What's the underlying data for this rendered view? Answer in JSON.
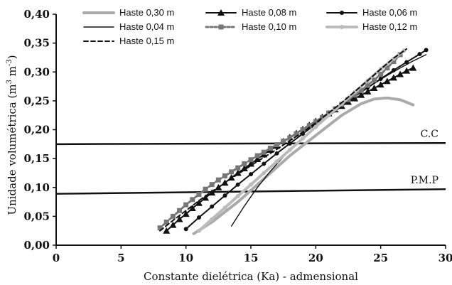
{
  "chart_data": {
    "type": "line",
    "title": "",
    "xlabel": "Constante dielétrica (Ka) - admensional",
    "ylabel_main": "Unidade volumétrica (m",
    "ylabel_sup1": "3",
    "ylabel_mid": " m",
    "ylabel_sup2": "-3",
    "ylabel_end": ")",
    "xlim": [
      0,
      30
    ],
    "ylim": [
      0,
      0.4
    ],
    "x_ticks": [
      {
        "value": 0,
        "label": "0"
      },
      {
        "value": 5,
        "label": "5"
      },
      {
        "value": 10,
        "label": "10"
      },
      {
        "value": 15,
        "label": "15"
      },
      {
        "value": 20,
        "label": "20"
      },
      {
        "value": 25,
        "label": "25"
      },
      {
        "value": 30,
        "label": "30"
      }
    ],
    "y_ticks": [
      {
        "value": 0,
        "label": "0,00"
      },
      {
        "value": 0.05,
        "label": "0,05"
      },
      {
        "value": 0.1,
        "label": "0,10"
      },
      {
        "value": 0.15,
        "label": "0,15"
      },
      {
        "value": 0.2,
        "label": "0,20"
      },
      {
        "value": 0.25,
        "label": "0,25"
      },
      {
        "value": 0.3,
        "label": "0,30"
      },
      {
        "value": 0.35,
        "label": "0,35"
      },
      {
        "value": 0.4,
        "label": "0,40"
      }
    ],
    "grid": false,
    "legend_position": "top",
    "reference_lines": [
      {
        "label": "C.C",
        "y_start": 0.175,
        "y_end": 0.177
      },
      {
        "label": "P.M.P",
        "y_start": 0.089,
        "y_end": 0.097
      }
    ],
    "series": [
      {
        "name": "Haste 0,30 m",
        "color": "#aaaaaa",
        "style": "thick",
        "marker": "none",
        "x": [
          10.6,
          12,
          14,
          16,
          18,
          20,
          22,
          23.5,
          24.5,
          25.5,
          26.5,
          27.5
        ],
        "y": [
          0.02,
          0.04,
          0.075,
          0.115,
          0.155,
          0.19,
          0.225,
          0.245,
          0.253,
          0.255,
          0.252,
          0.243
        ]
      },
      {
        "name": "Haste 0,08 m",
        "color": "#111111",
        "style": "solid",
        "marker": "triangle",
        "x": [
          8.5,
          9,
          9.5,
          10,
          10.5,
          11,
          11.5,
          12,
          12.5,
          13,
          13.5,
          14,
          14.5,
          15,
          15.5,
          16,
          16.5,
          17,
          17.5,
          18,
          18.5,
          19,
          19.5,
          20,
          20.5,
          21,
          21.5,
          22,
          22.5,
          23,
          23.5,
          24,
          24.5,
          25,
          25.5,
          26,
          26.5,
          27,
          27.5
        ],
        "y": [
          0.025,
          0.035,
          0.045,
          0.054,
          0.064,
          0.073,
          0.082,
          0.091,
          0.1,
          0.108,
          0.117,
          0.125,
          0.133,
          0.141,
          0.149,
          0.157,
          0.165,
          0.172,
          0.18,
          0.187,
          0.194,
          0.201,
          0.208,
          0.215,
          0.222,
          0.228,
          0.235,
          0.241,
          0.248,
          0.254,
          0.26,
          0.266,
          0.272,
          0.278,
          0.284,
          0.29,
          0.296,
          0.302,
          0.307
        ]
      },
      {
        "name": "Haste 0,06 m",
        "color": "#111111",
        "style": "solid",
        "marker": "circle",
        "x": [
          10,
          11,
          12,
          13,
          14,
          15,
          16,
          17,
          18,
          19,
          20,
          21,
          22,
          23,
          24,
          25,
          26,
          27,
          28,
          28.5
        ],
        "y": [
          0.028,
          0.048,
          0.067,
          0.086,
          0.105,
          0.123,
          0.141,
          0.159,
          0.176,
          0.193,
          0.21,
          0.226,
          0.242,
          0.258,
          0.273,
          0.288,
          0.303,
          0.317,
          0.331,
          0.338
        ]
      },
      {
        "name": "Haste 0,04 m",
        "color": "#111111",
        "style": "thin",
        "marker": "none",
        "x": [
          13.5,
          14.5,
          15.5,
          16.5,
          17.5,
          18.5,
          19.5,
          20.5,
          21.5,
          22.5,
          23.5,
          24.5,
          25.5,
          26.5,
          27.5,
          28.5
        ],
        "y": [
          0.033,
          0.068,
          0.1,
          0.128,
          0.153,
          0.175,
          0.195,
          0.214,
          0.232,
          0.249,
          0.265,
          0.28,
          0.294,
          0.307,
          0.319,
          0.33
        ]
      },
      {
        "name": "Haste 0,10 m",
        "color": "#777777",
        "style": "dotted",
        "marker": "square",
        "x": [
          8,
          8.5,
          9,
          9.5,
          10,
          10.5,
          11,
          11.5,
          12,
          12.5,
          13,
          13.5,
          14,
          14.5,
          15,
          15.5,
          16,
          16.5,
          17,
          17.5,
          18,
          18.5,
          19,
          19.5,
          20,
          20.5,
          21,
          21.5,
          22,
          22.5,
          23,
          23.5,
          24,
          24.5,
          25,
          25.5,
          26,
          26.5
        ],
        "y": [
          0.03,
          0.04,
          0.05,
          0.06,
          0.07,
          0.079,
          0.088,
          0.097,
          0.105,
          0.113,
          0.12,
          0.127,
          0.134,
          0.141,
          0.148,
          0.155,
          0.161,
          0.168,
          0.174,
          0.18,
          0.186,
          0.193,
          0.2,
          0.207,
          0.214,
          0.221,
          0.229,
          0.236,
          0.244,
          0.252,
          0.26,
          0.268,
          0.277,
          0.286,
          0.296,
          0.307,
          0.318,
          0.33
        ]
      },
      {
        "name": "Haste 0,12 m",
        "color": "#bbbbbb",
        "style": "thick",
        "marker": "circle",
        "x": [
          11,
          12,
          13,
          14,
          15,
          16,
          17,
          18,
          19,
          20,
          21,
          22,
          23,
          24,
          25,
          26,
          26.8
        ],
        "y": [
          0.025,
          0.045,
          0.065,
          0.085,
          0.105,
          0.125,
          0.145,
          0.165,
          0.185,
          0.205,
          0.225,
          0.245,
          0.265,
          0.285,
          0.305,
          0.323,
          0.337
        ]
      },
      {
        "name": "Haste 0,15 m",
        "color": "#111111",
        "style": "dashed",
        "marker": "none",
        "x": [
          8,
          9,
          10,
          11,
          12,
          13,
          14,
          15,
          16,
          17,
          18,
          19,
          20,
          21,
          22,
          23,
          24,
          25,
          26,
          27
        ],
        "y": [
          0.025,
          0.043,
          0.06,
          0.077,
          0.093,
          0.108,
          0.123,
          0.138,
          0.152,
          0.166,
          0.181,
          0.196,
          0.212,
          0.229,
          0.247,
          0.266,
          0.285,
          0.305,
          0.324,
          0.34
        ]
      }
    ]
  }
}
